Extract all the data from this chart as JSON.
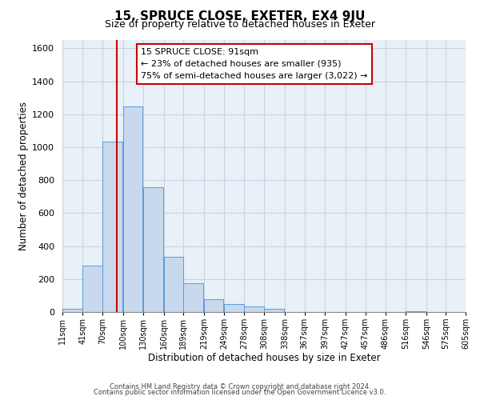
{
  "title": "15, SPRUCE CLOSE, EXETER, EX4 9JU",
  "subtitle": "Size of property relative to detached houses in Exeter",
  "xlabel": "Distribution of detached houses by size in Exeter",
  "ylabel": "Number of detached properties",
  "bar_left_edges": [
    11,
    41,
    70,
    100,
    130,
    160,
    189,
    219,
    249,
    278,
    308,
    338,
    367,
    397,
    427,
    457,
    486,
    516,
    546,
    575
  ],
  "bar_heights": [
    20,
    280,
    1035,
    1245,
    755,
    335,
    175,
    80,
    50,
    35,
    20,
    0,
    0,
    0,
    0,
    0,
    0,
    5,
    0,
    0
  ],
  "bar_color": "#c8d9ee",
  "bar_edge_color": "#5b9bd5",
  "vline_x": 91,
  "vline_color": "#cc0000",
  "ylim": [
    0,
    1650
  ],
  "yticks": [
    0,
    200,
    400,
    600,
    800,
    1000,
    1200,
    1400,
    1600
  ],
  "xtick_labels": [
    "11sqm",
    "41sqm",
    "70sqm",
    "100sqm",
    "130sqm",
    "160sqm",
    "189sqm",
    "219sqm",
    "249sqm",
    "278sqm",
    "308sqm",
    "338sqm",
    "367sqm",
    "397sqm",
    "427sqm",
    "457sqm",
    "486sqm",
    "516sqm",
    "546sqm",
    "575sqm",
    "605sqm"
  ],
  "annotation_title": "15 SPRUCE CLOSE: 91sqm",
  "annotation_line1": "← 23% of detached houses are smaller (935)",
  "annotation_line2": "75% of semi-detached houses are larger (3,022) →",
  "footer_line1": "Contains HM Land Registry data © Crown copyright and database right 2024.",
  "footer_line2": "Contains public sector information licensed under the Open Government Licence v3.0.",
  "background_color": "#ffffff",
  "grid_color": "#c8d4e0"
}
